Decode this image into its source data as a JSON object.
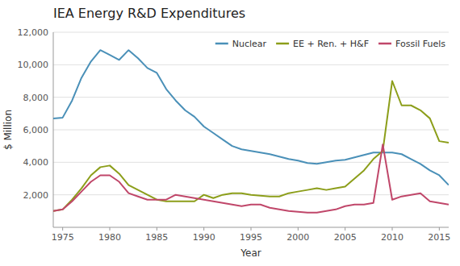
{
  "chart_data": {
    "type": "line",
    "title": "IEA Energy R&D Expenditures",
    "xlabel": "Year",
    "ylabel": "$ Million",
    "x": [
      1974,
      1975,
      1976,
      1977,
      1978,
      1979,
      1980,
      1981,
      1982,
      1983,
      1984,
      1985,
      1986,
      1987,
      1988,
      1989,
      1990,
      1991,
      1992,
      1993,
      1994,
      1995,
      1996,
      1997,
      1998,
      1999,
      2000,
      2001,
      2002,
      2003,
      2004,
      2005,
      2006,
      2007,
      2008,
      2009,
      2010,
      2011,
      2012,
      2013,
      2014,
      2015,
      2016
    ],
    "series": [
      {
        "name": "Nuclear",
        "color": "#4a90b8",
        "values": [
          6700,
          6750,
          7800,
          9200,
          10200,
          10900,
          10600,
          10300,
          10900,
          10400,
          9800,
          9500,
          8500,
          7800,
          7200,
          6800,
          6200,
          5800,
          5400,
          5000,
          4800,
          4700,
          4600,
          4500,
          4350,
          4200,
          4100,
          3950,
          3900,
          4000,
          4100,
          4150,
          4300,
          4450,
          4600,
          4600,
          4600,
          4500,
          4200,
          3900,
          3500,
          3200,
          2600
        ]
      },
      {
        "name": "EE + Ren. + H&F",
        "color": "#8c9e1a",
        "values": [
          1000,
          1100,
          1700,
          2400,
          3200,
          3700,
          3800,
          3300,
          2600,
          2300,
          2000,
          1700,
          1600,
          1600,
          1600,
          1600,
          2000,
          1800,
          2000,
          2100,
          2100,
          2000,
          1950,
          1900,
          1900,
          2100,
          2200,
          2300,
          2400,
          2300,
          2400,
          2500,
          3000,
          3500,
          4200,
          4700,
          9000,
          7500,
          7500,
          7200,
          6700,
          5300,
          5200
        ]
      },
      {
        "name": "Fossil Fuels",
        "color": "#c0476a",
        "values": [
          1000,
          1100,
          1600,
          2200,
          2800,
          3200,
          3200,
          2800,
          2100,
          1900,
          1700,
          1700,
          1700,
          2000,
          1900,
          1800,
          1700,
          1600,
          1500,
          1400,
          1300,
          1400,
          1400,
          1200,
          1100,
          1000,
          950,
          900,
          900,
          1000,
          1100,
          1300,
          1400,
          1400,
          1500,
          5100,
          1700,
          1900,
          2000,
          2100,
          1600,
          1500,
          1400
        ]
      }
    ],
    "xlim": [
      1974,
      2016
    ],
    "xticks": [
      1975,
      1980,
      1985,
      1990,
      1995,
      2000,
      2005,
      2010,
      2015
    ],
    "ylim": [
      0,
      12000
    ],
    "yticks": [
      {
        "value": 2000,
        "label": "2,000"
      },
      {
        "value": 4000,
        "label": "4,000"
      },
      {
        "value": 6000,
        "label": "6,000"
      },
      {
        "value": 8000,
        "label": "8,000"
      },
      {
        "value": 10000,
        "label": "10,000"
      },
      {
        "value": 12000,
        "label": "12,000"
      }
    ],
    "grid": true,
    "legend": "upper right"
  }
}
